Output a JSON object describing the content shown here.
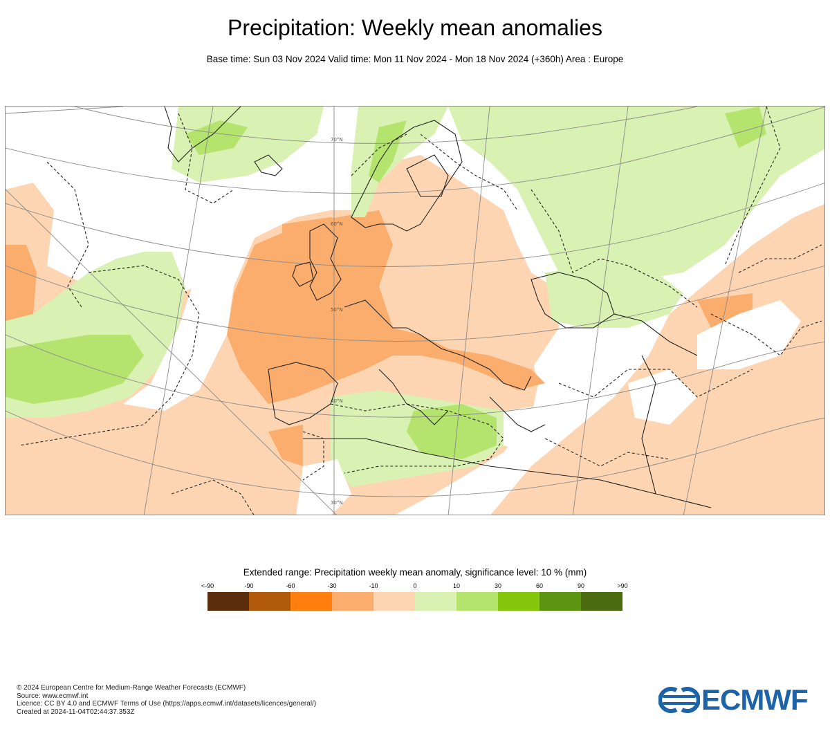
{
  "title": "Precipitation: Weekly mean anomalies",
  "subtitle": "Base time: Sun 03 Nov 2024 Valid time: Mon 11 Nov 2024 - Mon 18 Nov 2024 (+360h) Area : Europe",
  "legend": {
    "title": "Extended range: Precipitation weekly mean anomaly, significance level: 10 % (mm)",
    "ticks": [
      "<-90",
      "-90",
      "-60",
      "-30",
      "-10",
      "0",
      "10",
      "30",
      "60",
      "90",
      ">90"
    ],
    "colors": [
      "#5c2d0a",
      "#b05a0c",
      "#ff7f0e",
      "#fbad6d",
      "#fdd5b2",
      "#d9f1b3",
      "#b4e36e",
      "#84c70c",
      "#5b9411",
      "#4a6b0f"
    ]
  },
  "map": {
    "colors": {
      "dry_light": "#fdd5b2",
      "dry_mid": "#fbad6d",
      "wet_light": "#d9f1b3",
      "wet_mid": "#b4e36e",
      "coast": "#222222",
      "graticule": "#8a8a8a"
    },
    "graticule_labels": [
      "70°N",
      "60°N",
      "50°N",
      "40°N",
      "30°N"
    ]
  },
  "credits": [
    "© 2024 European Centre for Medium-Range Weather Forecasts (ECMWF)",
    "Source: www.ecmwf.int",
    "Licence: CC BY 4.0 and ECMWF Terms of Use (https://apps.ecmwf.int/datasets/licences/general/)",
    "Created at 2024-11-04T02:44:37.353Z"
  ],
  "logo": {
    "text": "ECMWF",
    "color": "#1c63a8"
  }
}
